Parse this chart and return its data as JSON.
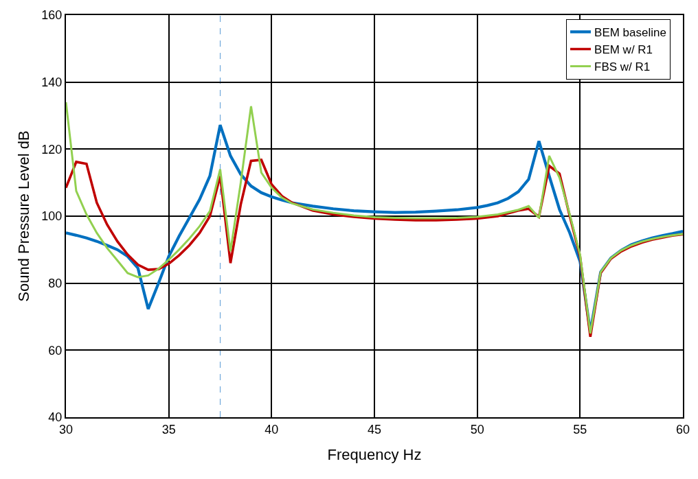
{
  "chart_data": {
    "type": "line",
    "xlabel": "Frequency Hz",
    "ylabel": "Sound Pressure Level dB",
    "xlim": [
      30,
      60
    ],
    "xticks": [
      30,
      35,
      40,
      45,
      50,
      55,
      60
    ],
    "ylim": [
      40,
      160
    ],
    "yticks": [
      40,
      60,
      80,
      100,
      120,
      140,
      160
    ],
    "grid": true,
    "legend": "top right",
    "marker": "none",
    "line_style": "solid",
    "ref_lines": [
      {
        "axis": "x",
        "value": 37.5,
        "color": "#5b9bd5",
        "line_style": "dashed"
      }
    ],
    "series": [
      {
        "name": "BEM baseline",
        "color": "#0070c0",
        "x": [
          30,
          30.5,
          31,
          31.5,
          32,
          32.5,
          33,
          33.5,
          34,
          34.5,
          35,
          35.5,
          36,
          36.5,
          37,
          37.5,
          38,
          38.5,
          39,
          39.5,
          40,
          40.5,
          41,
          42,
          43,
          44,
          45,
          46,
          47,
          48,
          49,
          50,
          50.5,
          51,
          51.5,
          52,
          52.5,
          53,
          53.5,
          54,
          54.5,
          55,
          55.5,
          56,
          56.5,
          57,
          57.5,
          58,
          58.5,
          59,
          59.5,
          60
        ],
        "values": [
          95,
          94.3,
          93.5,
          92.5,
          91.3,
          90,
          88,
          84.5,
          72.3,
          80,
          88,
          94,
          99.5,
          105,
          112,
          127.2,
          118,
          112.5,
          109,
          107,
          105.8,
          104.8,
          104,
          103,
          102.2,
          101.6,
          101.3,
          101.1,
          101.2,
          101.5,
          101.9,
          102.6,
          103.2,
          104,
          105.3,
          107.3,
          111,
          122.4,
          112,
          102,
          95,
          86.5,
          65.5,
          83.3,
          87.5,
          89.8,
          91.5,
          92.6,
          93.5,
          94.2,
          94.8,
          95.5
        ]
      },
      {
        "name": "BEM w/ R1",
        "color": "#c00000",
        "x": [
          30,
          30.5,
          31,
          31.5,
          32,
          32.5,
          33,
          33.5,
          34,
          34.5,
          35,
          35.5,
          36,
          36.5,
          37,
          37.5,
          38,
          38.5,
          39,
          39.5,
          40,
          40.5,
          41,
          42,
          43,
          44,
          45,
          46,
          47,
          48,
          49,
          50,
          51,
          52,
          52.5,
          53,
          53.5,
          54,
          54.5,
          55,
          55.5,
          56,
          56.5,
          57,
          57.5,
          58,
          58.5,
          59,
          59.5,
          60
        ],
        "values": [
          108.5,
          116.2,
          115.6,
          104,
          97.5,
          92.5,
          88.5,
          85.5,
          84,
          84.2,
          85.8,
          88.3,
          91.3,
          95,
          100,
          112,
          86,
          103.5,
          116.5,
          116.8,
          109.5,
          106,
          104,
          101.7,
          100.5,
          99.8,
          99.3,
          99,
          98.8,
          98.8,
          99,
          99.3,
          100,
          101.7,
          102.2,
          99.8,
          115,
          112.7,
          100,
          88,
          64,
          83,
          87.3,
          89.5,
          91,
          92.1,
          93,
          93.6,
          94.2,
          94.6
        ]
      },
      {
        "name": "FBS w/ R1",
        "color": "#92d050",
        "x": [
          30,
          30.5,
          31,
          31.5,
          32,
          32.5,
          33,
          33.5,
          34,
          34.5,
          35,
          35.5,
          36,
          36.5,
          37,
          37.5,
          38,
          38.5,
          39,
          39.5,
          40,
          40.5,
          41,
          42,
          43,
          44,
          45,
          46,
          47,
          48,
          49,
          50,
          51,
          52,
          52.5,
          53,
          53.5,
          54,
          54.5,
          55,
          55.5,
          56,
          56.5,
          57,
          57.5,
          58,
          58.5,
          59,
          59.5,
          60
        ],
        "values": [
          134,
          107.5,
          100.5,
          95,
          90.5,
          86.8,
          83,
          81.8,
          82.3,
          84.3,
          87,
          90,
          93.3,
          97,
          101.5,
          114,
          89.5,
          110,
          132.8,
          113,
          108.5,
          105.5,
          103.8,
          102,
          101,
          100.2,
          99.7,
          99.5,
          99.4,
          99.4,
          99.5,
          99.8,
          100.5,
          101.9,
          103,
          99.5,
          118,
          111.5,
          100.5,
          88.5,
          65,
          83.3,
          87.5,
          89.8,
          91.3,
          92.4,
          93.2,
          93.8,
          94.3,
          94.7
        ]
      }
    ]
  }
}
